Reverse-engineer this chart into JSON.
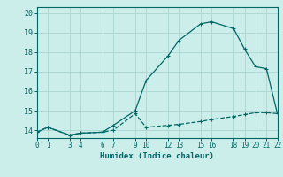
{
  "xlabel": "Humidex (Indice chaleur)",
  "bg_color": "#cceeea",
  "grid_color": "#b0d8d4",
  "line_color": "#006666",
  "xlim": [
    0,
    22
  ],
  "ylim": [
    13.6,
    20.3
  ],
  "yticks": [
    14,
    15,
    16,
    17,
    18,
    19,
    20
  ],
  "xtick_positions": [
    0,
    1,
    3,
    4,
    6,
    7,
    9,
    10,
    12,
    13,
    15,
    16,
    18,
    19,
    20,
    21,
    22
  ],
  "xtick_labels": [
    "0",
    "1",
    "3",
    "4",
    "6",
    "7",
    "9",
    "10",
    "12",
    "13",
    "15",
    "16",
    "18",
    "19",
    "20",
    "21",
    "22"
  ],
  "series1_x": [
    0,
    1,
    3,
    4,
    6,
    7,
    9,
    10,
    12,
    13,
    15,
    16,
    18,
    19,
    20,
    21,
    22
  ],
  "series1_y": [
    13.9,
    14.15,
    13.75,
    13.85,
    13.9,
    14.25,
    15.0,
    16.55,
    17.8,
    18.6,
    19.45,
    19.55,
    19.2,
    18.15,
    17.25,
    17.15,
    14.85
  ],
  "series2_x": [
    0,
    1,
    3,
    4,
    6,
    7,
    9,
    10,
    12,
    13,
    15,
    16,
    18,
    19,
    20,
    21,
    22
  ],
  "series2_y": [
    13.9,
    14.15,
    13.75,
    13.85,
    13.9,
    14.0,
    14.85,
    14.15,
    14.25,
    14.3,
    14.45,
    14.55,
    14.7,
    14.8,
    14.9,
    14.9,
    14.85
  ]
}
